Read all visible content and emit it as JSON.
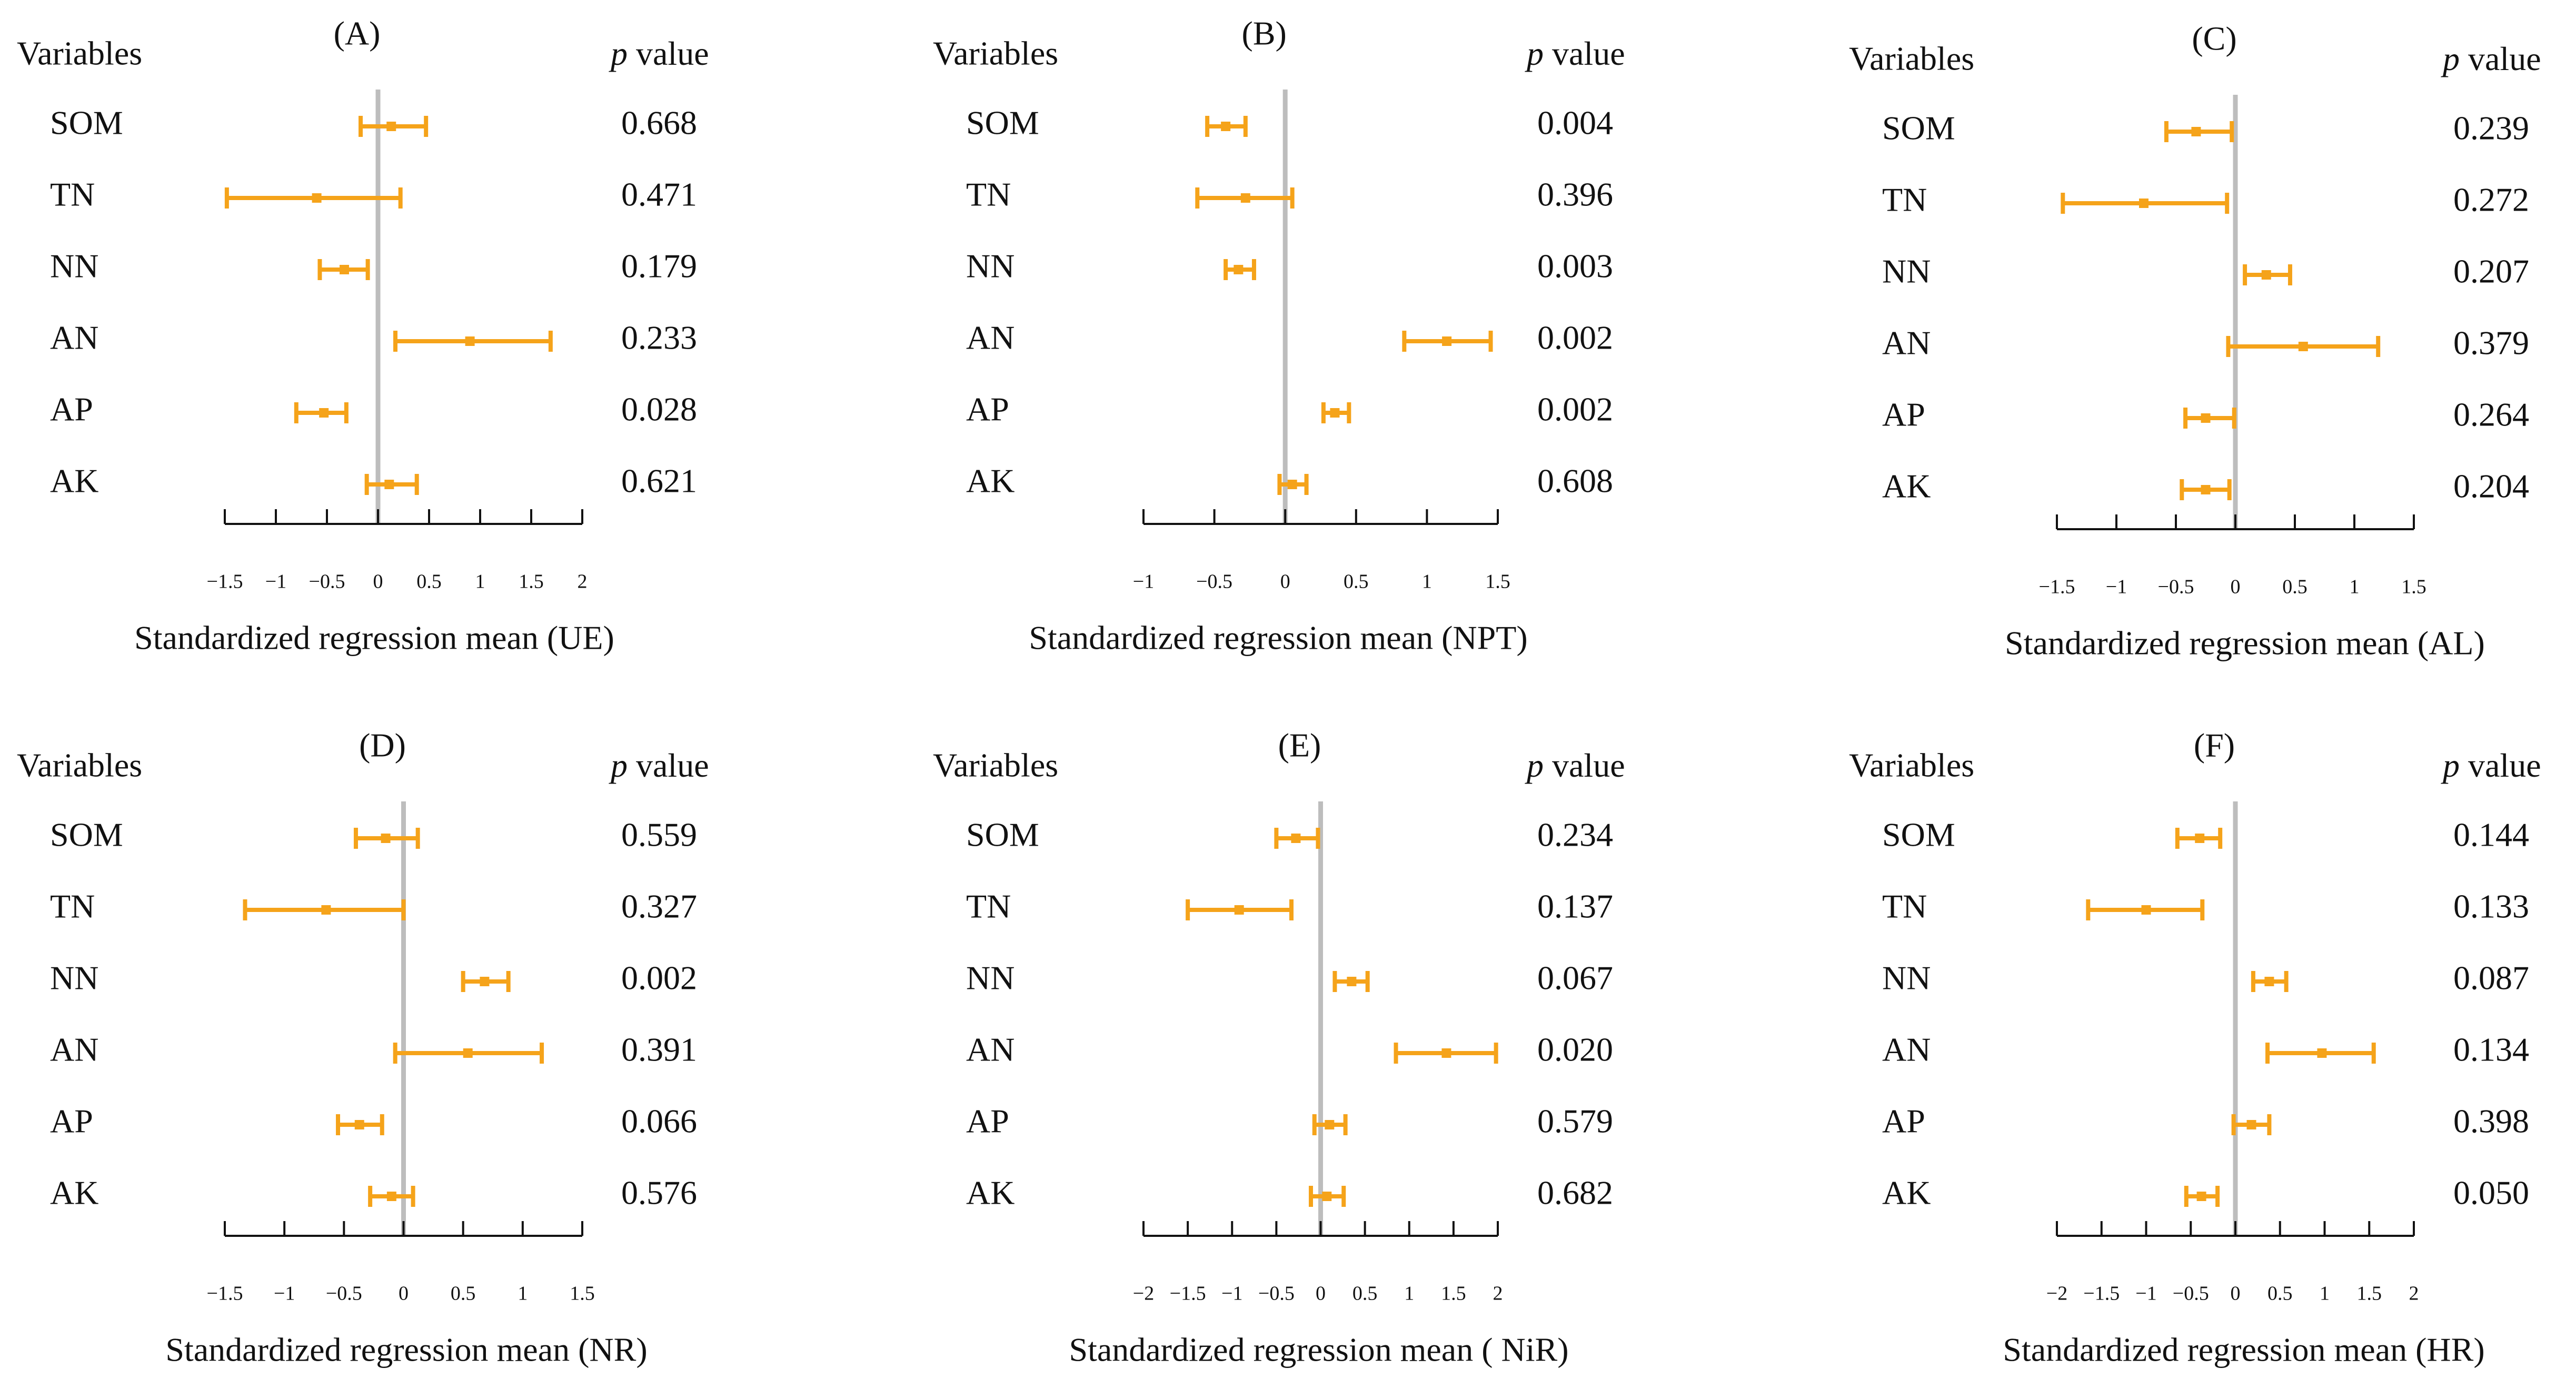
{
  "figure": {
    "variables_header": "Variables",
    "pvalue_italic": "p",
    "pvalue_rest": " value",
    "colors": {
      "marker": "#F5A31A",
      "zero_line": "#BDBDBD",
      "axis": "#111111",
      "text": "#111111"
    }
  },
  "chart_data": [
    {
      "type": "forest",
      "panel_label": "(A)",
      "xlabel": "Standardized regression mean (UE)",
      "xlim": [
        -1.5,
        2
      ],
      "ticks": [
        -1.5,
        -1,
        -0.5,
        0,
        0.5,
        1,
        1.5,
        2
      ],
      "tick_labels": [
        "−1.5",
        "−1",
        "−0.5",
        "0",
        "0.5",
        "1",
        "1.5",
        "2"
      ],
      "rows": [
        {
          "variable": "SOM",
          "mean": 0.13,
          "low": -0.17,
          "high": 0.47,
          "p_value": "0.668"
        },
        {
          "variable": "TN",
          "mean": -0.6,
          "low": -1.48,
          "high": 0.22,
          "p_value": "0.471"
        },
        {
          "variable": "NN",
          "mean": -0.33,
          "low": -0.57,
          "high": -0.1,
          "p_value": "0.179"
        },
        {
          "variable": "AN",
          "mean": 0.9,
          "low": 0.17,
          "high": 1.69,
          "p_value": "0.233"
        },
        {
          "variable": "AP",
          "mean": -0.53,
          "low": -0.8,
          "high": -0.31,
          "p_value": "0.028"
        },
        {
          "variable": "AK",
          "mean": 0.11,
          "low": -0.11,
          "high": 0.38,
          "p_value": "0.621"
        }
      ]
    },
    {
      "type": "forest",
      "panel_label": "(B)",
      "xlabel": "Standardized regression mean (NPT)",
      "xlim": [
        -1,
        1.5
      ],
      "ticks": [
        -1,
        -0.5,
        0,
        0.5,
        1,
        1.5
      ],
      "tick_labels": [
        "−1",
        "−0.5",
        "0",
        "0.5",
        "1",
        "1.5"
      ],
      "rows": [
        {
          "variable": "SOM",
          "mean": -0.42,
          "low": -0.55,
          "high": -0.28,
          "p_value": "0.004"
        },
        {
          "variable": "TN",
          "mean": -0.28,
          "low": -0.62,
          "high": 0.05,
          "p_value": "0.396"
        },
        {
          "variable": "NN",
          "mean": -0.33,
          "low": -0.42,
          "high": -0.22,
          "p_value": "0.003"
        },
        {
          "variable": "AN",
          "mean": 1.14,
          "low": 0.84,
          "high": 1.45,
          "p_value": "0.002"
        },
        {
          "variable": "AP",
          "mean": 0.35,
          "low": 0.27,
          "high": 0.45,
          "p_value": "0.002"
        },
        {
          "variable": "AK",
          "mean": 0.05,
          "low": -0.04,
          "high": 0.15,
          "p_value": "0.608"
        }
      ]
    },
    {
      "type": "forest",
      "panel_label": "(C)",
      "xlabel": "Standardized regression mean (AL)",
      "xlim": [
        -1.5,
        1.5
      ],
      "ticks": [
        -1.5,
        -1,
        -0.5,
        0,
        0.5,
        1,
        1.5
      ],
      "tick_labels": [
        "−1.5",
        "−1",
        "−0.5",
        "0",
        "0.5",
        "1",
        "1.5"
      ],
      "rows": [
        {
          "variable": "SOM",
          "mean": -0.33,
          "low": -0.58,
          "high": -0.03,
          "p_value": "0.239"
        },
        {
          "variable": "TN",
          "mean": -0.77,
          "low": -1.45,
          "high": -0.07,
          "p_value": "0.272"
        },
        {
          "variable": "NN",
          "mean": 0.26,
          "low": 0.08,
          "high": 0.46,
          "p_value": "0.207"
        },
        {
          "variable": "AN",
          "mean": 0.57,
          "low": -0.06,
          "high": 1.2,
          "p_value": "0.379"
        },
        {
          "variable": "AP",
          "mean": -0.25,
          "low": -0.42,
          "high": -0.01,
          "p_value": "0.264"
        },
        {
          "variable": "AK",
          "mean": -0.25,
          "low": -0.45,
          "high": -0.05,
          "p_value": "0.204"
        }
      ]
    },
    {
      "type": "forest",
      "panel_label": "(D)",
      "xlabel": "Standardized regression mean (NR)",
      "xlim": [
        -1.5,
        1.5
      ],
      "ticks": [
        -1.5,
        -1,
        -0.5,
        0,
        0.5,
        1,
        1.5
      ],
      "tick_labels": [
        "−1.5",
        "−1",
        "−0.5",
        "0",
        "0.5",
        "1",
        "1.5"
      ],
      "rows": [
        {
          "variable": "SOM",
          "mean": -0.15,
          "low": -0.4,
          "high": 0.12,
          "p_value": "0.559"
        },
        {
          "variable": "TN",
          "mean": -0.65,
          "low": -1.33,
          "high": 0.0,
          "p_value": "0.327"
        },
        {
          "variable": "NN",
          "mean": 0.68,
          "low": 0.5,
          "high": 0.88,
          "p_value": "0.002"
        },
        {
          "variable": "AN",
          "mean": 0.54,
          "low": -0.07,
          "high": 1.16,
          "p_value": "0.391"
        },
        {
          "variable": "AP",
          "mean": -0.37,
          "low": -0.55,
          "high": -0.18,
          "p_value": "0.066"
        },
        {
          "variable": "AK",
          "mean": -0.1,
          "low": -0.28,
          "high": 0.08,
          "p_value": "0.576"
        }
      ]
    },
    {
      "type": "forest",
      "panel_label": "(E)",
      "xlabel": "Standardized regression mean ( NiR)",
      "xlim": [
        -2,
        2
      ],
      "ticks": [
        -2,
        -1.5,
        -1,
        -0.5,
        0,
        0.5,
        1,
        1.5,
        2
      ],
      "tick_labels": [
        "−2",
        "−1.5",
        "−1",
        "−0.5",
        "0",
        "0.5",
        "1",
        "1.5",
        "2"
      ],
      "rows": [
        {
          "variable": "SOM",
          "mean": -0.28,
          "low": -0.5,
          "high": -0.03,
          "p_value": "0.234"
        },
        {
          "variable": "TN",
          "mean": -0.92,
          "low": -1.5,
          "high": -0.33,
          "p_value": "0.137"
        },
        {
          "variable": "NN",
          "mean": 0.35,
          "low": 0.16,
          "high": 0.53,
          "p_value": "0.067"
        },
        {
          "variable": "AN",
          "mean": 1.42,
          "low": 0.85,
          "high": 1.98,
          "p_value": "0.020"
        },
        {
          "variable": "AP",
          "mean": 0.1,
          "low": -0.07,
          "high": 0.28,
          "p_value": "0.579"
        },
        {
          "variable": "AK",
          "mean": 0.07,
          "low": -0.11,
          "high": 0.26,
          "p_value": "0.682"
        }
      ]
    },
    {
      "type": "forest",
      "panel_label": "(F)",
      "xlabel": "Standardized regression mean (HR)",
      "xlim": [
        -2,
        2
      ],
      "ticks": [
        -2,
        -1.5,
        -1,
        -0.5,
        0,
        0.5,
        1,
        1.5,
        2
      ],
      "tick_labels": [
        "−2",
        "−1.5",
        "−1",
        "−0.5",
        "0",
        "0.5",
        "1",
        "1.5",
        "2"
      ],
      "rows": [
        {
          "variable": "SOM",
          "mean": -0.4,
          "low": -0.65,
          "high": -0.17,
          "p_value": "0.144"
        },
        {
          "variable": "TN",
          "mean": -1.0,
          "low": -1.65,
          "high": -0.37,
          "p_value": "0.133"
        },
        {
          "variable": "NN",
          "mean": 0.38,
          "low": 0.2,
          "high": 0.57,
          "p_value": "0.087"
        },
        {
          "variable": "AN",
          "mean": 0.97,
          "low": 0.36,
          "high": 1.55,
          "p_value": "0.134"
        },
        {
          "variable": "AP",
          "mean": 0.18,
          "low": -0.02,
          "high": 0.38,
          "p_value": "0.398"
        },
        {
          "variable": "AK",
          "mean": -0.38,
          "low": -0.55,
          "high": -0.2,
          "p_value": "0.050"
        }
      ]
    }
  ]
}
